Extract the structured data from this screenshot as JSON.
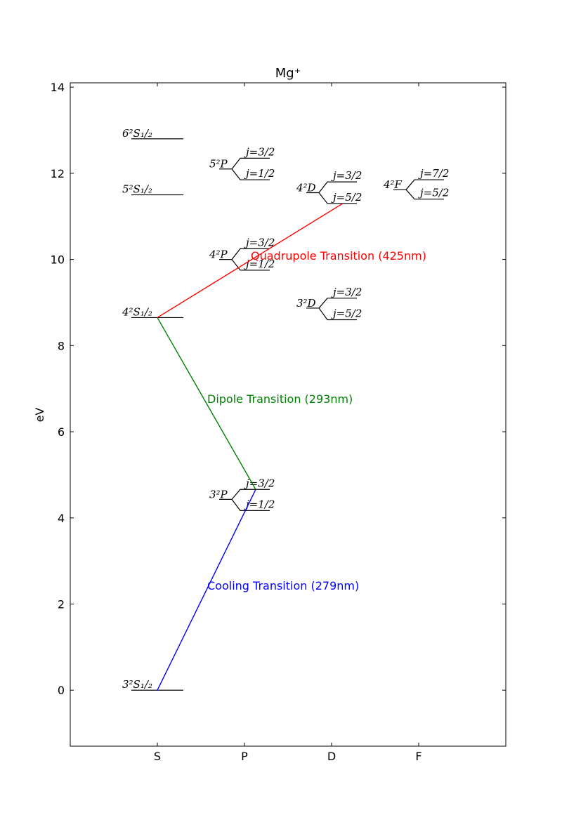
{
  "chart_data": {
    "type": "diagram",
    "title": "Mg⁺",
    "ylabel": "eV",
    "ylim": [
      -1.3,
      14.1
    ],
    "yticks": [
      0,
      2,
      4,
      6,
      8,
      10,
      12,
      14
    ],
    "categories": [
      "S",
      "P",
      "D",
      "F"
    ],
    "s_levels": [
      {
        "label": "3²S₁/₂",
        "energy": 0
      },
      {
        "label": "4²S₁/₂",
        "energy": 8.65
      },
      {
        "label": "5²S₁/₂",
        "energy": 11.5
      },
      {
        "label": "6²S₁/₂",
        "energy": 12.8
      }
    ],
    "split_levels": [
      {
        "column": "P",
        "label": "3²P",
        "center": 4.43,
        "upper_label": "j=3/2",
        "upper_energy": 4.66,
        "lower_label": "j=1/2",
        "lower_energy": 4.17
      },
      {
        "column": "P",
        "label": "4²P",
        "center": 10.0,
        "upper_label": "j=3/2",
        "upper_energy": 10.25,
        "lower_label": "j=1/2",
        "lower_energy": 9.75
      },
      {
        "column": "P",
        "label": "5²P",
        "center": 12.1,
        "upper_label": "j=3/2",
        "upper_energy": 12.35,
        "lower_label": "j=1/2",
        "lower_energy": 11.85
      },
      {
        "column": "D",
        "label": "3²D",
        "center": 8.87,
        "upper_label": "j=3/2",
        "upper_energy": 9.1,
        "lower_label": "j=5/2",
        "lower_energy": 8.6
      },
      {
        "column": "D",
        "label": "4²D",
        "center": 11.55,
        "upper_label": "j=3/2",
        "upper_energy": 11.8,
        "lower_label": "j=5/2",
        "lower_energy": 11.3
      },
      {
        "column": "F",
        "label": "4²F",
        "center": 11.62,
        "upper_label": "j=7/2",
        "upper_energy": 11.85,
        "lower_label": "j=5/2",
        "lower_energy": 11.4
      }
    ],
    "transitions": [
      {
        "label": "Cooling Transition (279nm)",
        "color": "#0000ff",
        "from": {
          "col": "S",
          "energy": 0
        },
        "to": {
          "col": "P",
          "energy": 4.66
        }
      },
      {
        "label": "Dipole Transition (293nm)",
        "color": "#008000",
        "from": {
          "col": "S",
          "energy": 8.65
        },
        "to": {
          "col": "P",
          "energy": 4.66
        }
      },
      {
        "label": "Quadrupole Transition (425nm)",
        "color": "#ff0000",
        "from": {
          "col": "S",
          "energy": 8.65
        },
        "to": {
          "col": "D",
          "energy": 11.3
        }
      }
    ]
  }
}
